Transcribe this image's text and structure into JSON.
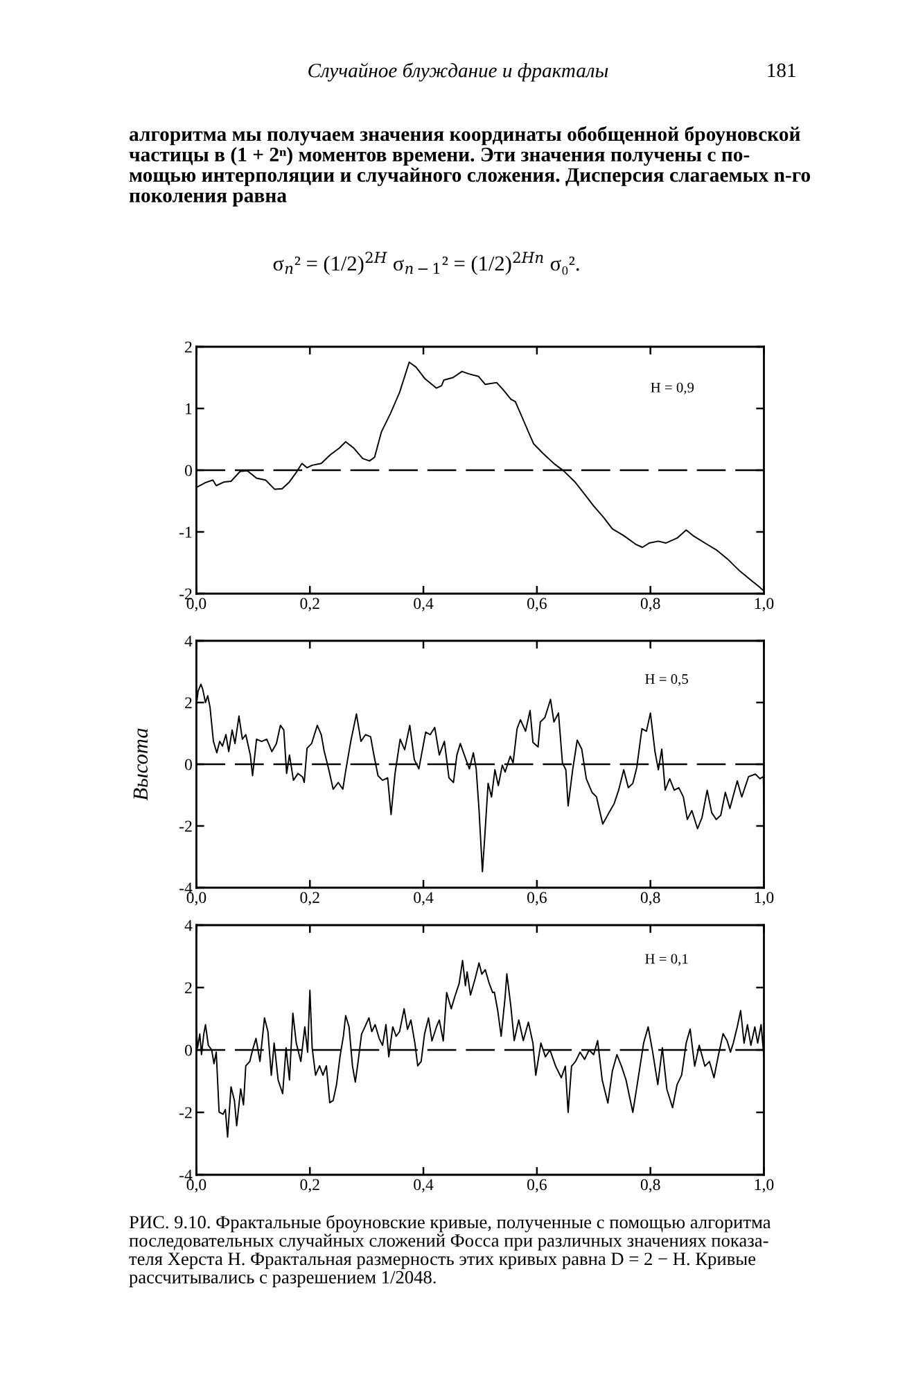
{
  "chart_data": [
    {
      "type": "line",
      "annotations": [
        "Случайное блуждание и фракталы",
        "181",
        "алгоритма мы получаем значения координаты обобщенной броуновской\nчастицы в (1 + 2ⁿ) моментов времени. Эти значения получены с по-\nмощью интерполяции и случайного сложения. Дисперсия слагаемых n-го\nпоколения равна",
        "σ$_{n}$² = (1/2)$^{2H}$ σ$_{n−1}$² = (1/2)$^{2Hn}$ σ₀².",
        "H = 0,9"
      ],
      "xlim": [
        0,
        1
      ],
      "xticks": [
        {
          "value": 0,
          "label": "0,0"
        },
        {
          "value": 0.2,
          "label": "0,2"
        },
        {
          "value": 0.4,
          "label": "0,4"
        },
        {
          "value": 0.6,
          "label": "0,6"
        },
        {
          "value": 0.8,
          "label": "0,8"
        },
        {
          "value": 1,
          "label": "1,0"
        }
      ],
      "ylim": [
        -2,
        2
      ],
      "yticks": [
        -2,
        -1,
        0,
        1,
        2
      ],
      "ref_lines": [
        {
          "axis": "y",
          "value": 0,
          "line_style": "dashed",
          "color": "#000000"
        }
      ],
      "series": [
        {
          "color": "#000000",
          "x": [
            0,
            0.016,
            0.029,
            0.035,
            0.049,
            0.061,
            0.077,
            0.09,
            0.106,
            0.122,
            0.138,
            0.151,
            0.163,
            0.175,
            0.186,
            0.195,
            0.204,
            0.22,
            0.236,
            0.252,
            0.263,
            0.277,
            0.293,
            0.305,
            0.314,
            0.326,
            0.342,
            0.358,
            0.375,
            0.387,
            0.403,
            0.423,
            0.432,
            0.436,
            0.452,
            0.468,
            0.48,
            0.497,
            0.509,
            0.529,
            0.541,
            0.554,
            0.562,
            0.578,
            0.594,
            0.611,
            0.631,
            0.647,
            0.668,
            0.684,
            0.7,
            0.717,
            0.733,
            0.753,
            0.774,
            0.786,
            0.798,
            0.814,
            0.827,
            0.847,
            0.863,
            0.875,
            0.896,
            0.916,
            0.936,
            0.957,
            0.977,
            0.993,
            1.0
          ],
          "values": [
            -0.28,
            -0.2,
            -0.16,
            -0.25,
            -0.19,
            -0.18,
            -0.02,
            -0.01,
            -0.13,
            -0.16,
            -0.31,
            -0.3,
            -0.2,
            -0.05,
            0.11,
            0.04,
            0.08,
            0.11,
            0.25,
            0.36,
            0.46,
            0.36,
            0.19,
            0.15,
            0.21,
            0.62,
            0.92,
            1.26,
            1.75,
            1.67,
            1.48,
            1.33,
            1.37,
            1.46,
            1.5,
            1.6,
            1.56,
            1.52,
            1.39,
            1.42,
            1.3,
            1.15,
            1.11,
            0.77,
            0.43,
            0.27,
            0.1,
            -0.01,
            -0.2,
            -0.39,
            -0.58,
            -0.76,
            -0.95,
            -1.06,
            -1.2,
            -1.25,
            -1.18,
            -1.15,
            -1.18,
            -1.1,
            -0.97,
            -1.06,
            -1.18,
            -1.29,
            -1.44,
            -1.63,
            -1.78,
            -1.9,
            -1.96
          ]
        }
      ]
    },
    {
      "type": "line",
      "ylabel": "Высота",
      "annotations": [
        "H = 0,5"
      ],
      "xlim": [
        0,
        1
      ],
      "xticks": [
        {
          "value": 0,
          "label": "0,0"
        },
        {
          "value": 0.2,
          "label": "0,2"
        },
        {
          "value": 0.4,
          "label": "0,4"
        },
        {
          "value": 0.6,
          "label": "0,6"
        },
        {
          "value": 0.8,
          "label": "0,8"
        },
        {
          "value": 1,
          "label": "1,0"
        }
      ],
      "ylim": [
        -4,
        4
      ],
      "yticks": [
        -4,
        -2,
        0,
        2,
        4
      ],
      "ref_lines": [
        {
          "axis": "y",
          "value": 0,
          "line_style": "dashed",
          "color": "#000000"
        }
      ],
      "series": [
        {
          "color": "#000000",
          "x": [
            0,
            0.003,
            0.008,
            0.011,
            0.016,
            0.02,
            0.024,
            0.03,
            0.036,
            0.041,
            0.046,
            0.052,
            0.057,
            0.063,
            0.068,
            0.075,
            0.081,
            0.087,
            0.095,
            0.099,
            0.106,
            0.115,
            0.124,
            0.133,
            0.141,
            0.148,
            0.154,
            0.159,
            0.164,
            0.171,
            0.179,
            0.187,
            0.19,
            0.195,
            0.203,
            0.213,
            0.22,
            0.225,
            0.233,
            0.241,
            0.25,
            0.258,
            0.263,
            0.272,
            0.282,
            0.29,
            0.298,
            0.307,
            0.312,
            0.32,
            0.328,
            0.337,
            0.343,
            0.35,
            0.359,
            0.367,
            0.376,
            0.384,
            0.392,
            0.404,
            0.412,
            0.42,
            0.428,
            0.437,
            0.445,
            0.453,
            0.459,
            0.465,
            0.475,
            0.481,
            0.488,
            0.493,
            0.498,
            0.502,
            0.504,
            0.508,
            0.514,
            0.52,
            0.526,
            0.532,
            0.539,
            0.544,
            0.553,
            0.558,
            0.565,
            0.571,
            0.58,
            0.588,
            0.593,
            0.602,
            0.606,
            0.614,
            0.624,
            0.63,
            0.638,
            0.645,
            0.651,
            0.655,
            0.663,
            0.671,
            0.679,
            0.687,
            0.697,
            0.705,
            0.716,
            0.727,
            0.736,
            0.744,
            0.753,
            0.761,
            0.769,
            0.776,
            0.785,
            0.793,
            0.8,
            0.808,
            0.814,
            0.82,
            0.826,
            0.834,
            0.842,
            0.85,
            0.858,
            0.865,
            0.873,
            0.883,
            0.891,
            0.9,
            0.908,
            0.916,
            0.924,
            0.932,
            0.94,
            0.953,
            0.961,
            0.973,
            0.985,
            0.993,
            0.999,
            1.0
          ],
          "values": [
            1.93,
            2.37,
            2.59,
            2.44,
            2.0,
            2.22,
            1.85,
            0.74,
            0.37,
            0.74,
            0.59,
            0.96,
            0.41,
            1.11,
            0.67,
            1.56,
            0.81,
            0.96,
            0.3,
            -0.37,
            0.81,
            0.74,
            0.81,
            0.41,
            0.67,
            1.26,
            1.11,
            -0.3,
            0.3,
            -0.52,
            -0.3,
            -0.41,
            -0.59,
            0.52,
            0.67,
            1.26,
            0.96,
            0.44,
            -0.15,
            -0.81,
            -0.59,
            -0.81,
            -0.22,
            0.74,
            1.63,
            0.74,
            0.96,
            0.89,
            0.37,
            -0.37,
            -0.52,
            -0.44,
            -1.63,
            -0.3,
            0.81,
            0.47,
            1.26,
            0.15,
            -0.15,
            1.04,
            0.96,
            1.19,
            0.3,
            0.74,
            -0.44,
            -0.59,
            0.3,
            0.67,
            0.15,
            -0.15,
            0.37,
            -0.15,
            -1.48,
            -2.81,
            -3.48,
            -2.38,
            -0.62,
            -1.06,
            -0.18,
            -0.69,
            -0.03,
            -0.25,
            0.26,
            0.04,
            1.15,
            1.44,
            1.07,
            1.74,
            0.71,
            0.56,
            1.37,
            1.51,
            2.1,
            1.37,
            1.66,
            0.04,
            -0.18,
            -1.35,
            -0.18,
            0.78,
            0.49,
            -0.47,
            -0.91,
            -1.06,
            -1.94,
            -1.57,
            -1.28,
            -0.84,
            -0.18,
            -0.76,
            -0.62,
            -0.1,
            1.15,
            1.07,
            1.66,
            0.41,
            -0.18,
            0.49,
            -0.84,
            -0.47,
            -0.84,
            -0.76,
            -1.06,
            -1.79,
            -1.5,
            -2.09,
            -1.72,
            -0.84,
            -1.57,
            -1.79,
            -1.65,
            -0.91,
            -1.43,
            -0.54,
            -1.06,
            -0.4,
            -0.32,
            -0.47,
            -0.4,
            -1.43
          ]
        }
      ]
    },
    {
      "type": "line",
      "annotations": [
        "H = 0,1",
        "РИС. 9.10. Фрактальные броуновские кривые, полученные с помощью алгоритма\nпоследовательных случайных сложений Фосса при различных значениях показа-\nтеля Херста H. Фрактальная размерность этих кривых равна D = 2 − H. Кривые\nрассчитывались с разрешением 1/2048."
      ],
      "xlim": [
        0,
        1
      ],
      "xticks": [
        {
          "value": 0,
          "label": "0,0"
        },
        {
          "value": 0.2,
          "label": "0,2"
        },
        {
          "value": 0.4,
          "label": "0,4"
        },
        {
          "value": 0.6,
          "label": "0,6"
        },
        {
          "value": 0.8,
          "label": "0,8"
        },
        {
          "value": 1,
          "label": "1,0"
        }
      ],
      "ylim": [
        -4,
        4
      ],
      "yticks": [
        -4,
        -2,
        0,
        2,
        4
      ],
      "ref_lines": [
        {
          "axis": "y",
          "value": 0,
          "line_style": "dashed",
          "color": "#000000"
        }
      ],
      "series": [
        {
          "color": "#000000",
          "x": [
            0,
            0.002,
            0.006,
            0.009,
            0.013,
            0.016,
            0.021,
            0.027,
            0.031,
            0.035,
            0.04,
            0.047,
            0.051,
            0.055,
            0.061,
            0.067,
            0.071,
            0.078,
            0.083,
            0.087,
            0.094,
            0.099,
            0.105,
            0.112,
            0.12,
            0.126,
            0.132,
            0.137,
            0.144,
            0.152,
            0.158,
            0.164,
            0.17,
            0.176,
            0.184,
            0.191,
            0.196,
            0.2,
            0.204,
            0.21,
            0.217,
            0.223,
            0.229,
            0.235,
            0.241,
            0.247,
            0.253,
            0.259,
            0.263,
            0.269,
            0.275,
            0.28,
            0.285,
            0.291,
            0.297,
            0.304,
            0.309,
            0.315,
            0.322,
            0.328,
            0.334,
            0.339,
            0.346,
            0.352,
            0.358,
            0.366,
            0.372,
            0.378,
            0.385,
            0.39,
            0.396,
            0.402,
            0.409,
            0.415,
            0.423,
            0.428,
            0.435,
            0.441,
            0.449,
            0.455,
            0.463,
            0.469,
            0.474,
            0.477,
            0.483,
            0.491,
            0.498,
            0.503,
            0.509,
            0.516,
            0.522,
            0.525,
            0.531,
            0.537,
            0.544,
            0.547,
            0.554,
            0.56,
            0.568,
            0.576,
            0.585,
            0.593,
            0.598,
            0.607,
            0.615,
            0.623,
            0.633,
            0.643,
            0.65,
            0.655,
            0.661,
            0.668,
            0.676,
            0.684,
            0.692,
            0.7,
            0.707,
            0.715,
            0.725,
            0.733,
            0.741,
            0.749,
            0.757,
            0.769,
            0.778,
            0.788,
            0.796,
            0.804,
            0.813,
            0.821,
            0.829,
            0.839,
            0.847,
            0.855,
            0.863,
            0.87,
            0.878,
            0.886,
            0.896,
            0.904,
            0.912,
            0.92,
            0.928,
            0.935,
            0.941,
            0.946,
            0.953,
            0.959,
            0.965,
            0.971,
            0.977,
            0.984,
            0.989,
            0.995,
            1.0
          ],
          "values": [
            0.66,
            0.07,
            0.51,
            -0.15,
            0.51,
            0.81,
            0.15,
            0,
            -0.44,
            -0.07,
            -1.99,
            -2.06,
            -1.91,
            -2.79,
            -1.18,
            -1.62,
            -2.43,
            -1.25,
            -1.76,
            -0.51,
            -0.37,
            0,
            0.37,
            -0.37,
            1.03,
            0.59,
            -0.81,
            0.22,
            -0.96,
            -1.4,
            0.07,
            -0.96,
            1.18,
            0.22,
            -0.37,
            0.74,
            -0.07,
            1.91,
            0.07,
            -0.81,
            -0.51,
            -0.81,
            -0.51,
            -1.69,
            -1.62,
            -1.1,
            -0.22,
            0.44,
            1.1,
            0.74,
            -0.51,
            -1.03,
            -0.37,
            0.51,
            0.74,
            1.03,
            0.59,
            0.81,
            0.37,
            0.15,
            0.81,
            -0.22,
            0.74,
            0.44,
            0.59,
            1.32,
            0.66,
            0.96,
            0.22,
            -0.51,
            -0.37,
            0.51,
            1.03,
            0.29,
            0.74,
            0.96,
            0.29,
            1.84,
            1.32,
            1.69,
            2.13,
            2.87,
            2.06,
            2.5,
            1.76,
            2.28,
            2.79,
            2.43,
            2.57,
            2.13,
            1.84,
            1.85,
            1.26,
            0.44,
            1.7,
            2.44,
            1.41,
            0.3,
            0.96,
            0.3,
            0.89,
            0.22,
            -0.81,
            0.22,
            -0.22,
            0,
            -0.52,
            -0.89,
            -0.52,
            -2.0,
            -0.52,
            -0.37,
            -0.07,
            -0.3,
            0,
            -0.15,
            0.3,
            -0.96,
            -1.7,
            -0.67,
            -0.15,
            -0.52,
            -0.96,
            -2.0,
            -0.96,
            0.22,
            0.74,
            -0.07,
            -1.11,
            0.07,
            -1.26,
            -1.85,
            -1.11,
            -0.81,
            0.22,
            0.67,
            -0.52,
            0.15,
            -0.52,
            -0.37,
            -0.89,
            -0.15,
            0.52,
            0.3,
            -0.07,
            0.22,
            0.74,
            1.26,
            0.22,
            0.81,
            0.15,
            0.74,
            0.22,
            0.81,
            -0.22
          ]
        }
      ]
    }
  ]
}
